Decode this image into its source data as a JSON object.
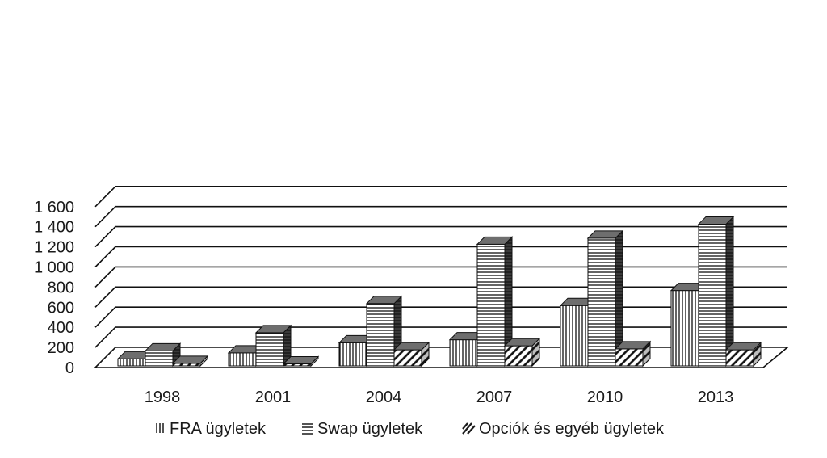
{
  "chart_data": {
    "type": "bar",
    "title": "",
    "xlabel": "",
    "ylabel": "",
    "ylim": [
      0,
      1600
    ],
    "yticks": [
      0,
      200,
      400,
      600,
      800,
      1000,
      1200,
      1400,
      1600
    ],
    "ytick_labels": [
      "0",
      "200",
      "400",
      "600",
      "800",
      "1 000",
      "1 200",
      "1 400",
      "1 600"
    ],
    "grid": true,
    "legend_position": "bottom",
    "categories": [
      "1998",
      "2001",
      "2004",
      "2007",
      "2010",
      "2013"
    ],
    "series": [
      {
        "name": "FRA ügyletek",
        "pattern": "vertical-lines",
        "values": [
          70,
          130,
          230,
          260,
          600,
          750
        ]
      },
      {
        "name": "Swap ügyletek",
        "pattern": "horizontal-lines",
        "values": [
          150,
          330,
          620,
          1210,
          1270,
          1410
        ]
      },
      {
        "name": "Opciók és egyéb ügyletek",
        "pattern": "diagonal-lines",
        "values": [
          25,
          20,
          160,
          200,
          170,
          160
        ]
      }
    ],
    "colors": {
      "top_face": "#6e6e6e",
      "side_face": "#555555",
      "grid": "#111111",
      "text": "#1a1a1a"
    }
  }
}
